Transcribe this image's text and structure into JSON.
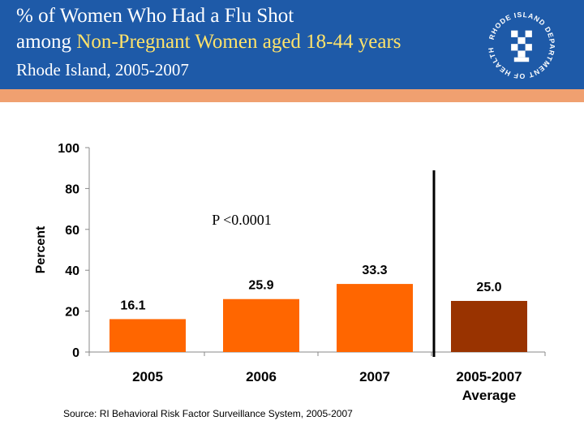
{
  "header": {
    "title_line1": "% of Women Who Had a Flu Shot",
    "title_line2_prefix": "among ",
    "title_line2_highlight": "Non-Pregnant Women aged 18-44 years",
    "subtitle": "Rhode Island, 2005-2007",
    "logo_alt": "RHODE ISLAND DEPARTMENT OF HEALTH"
  },
  "colors": {
    "header_bg": "#1E5AA8",
    "band": "#F0A070",
    "bar": "#FF6600",
    "bar_avg": "#993300",
    "highlight": "#FFE36A"
  },
  "chart_data": {
    "type": "bar",
    "title": "% of Women Who Had a Flu Shot among Non-Pregnant Women aged 18-44 years",
    "categories": [
      "2005",
      "2006",
      "2007",
      "2005-2007 Average"
    ],
    "category_lines": [
      [
        "2005"
      ],
      [
        "2006"
      ],
      [
        "2007"
      ],
      [
        "2005-2007",
        "Average"
      ]
    ],
    "values": [
      16.1,
      25.9,
      33.3,
      25.0
    ],
    "value_labels": [
      "16.1",
      "25.9",
      "33.3",
      "25.0"
    ],
    "ylabel": "Percent",
    "xlabel": "",
    "ylim": [
      0,
      100
    ],
    "yticks": [
      0,
      20,
      40,
      60,
      80,
      100
    ],
    "annotation": "P <0.0001"
  },
  "source": "Source: RI Behavioral Risk Factor Surveillance System, 2005-2007"
}
